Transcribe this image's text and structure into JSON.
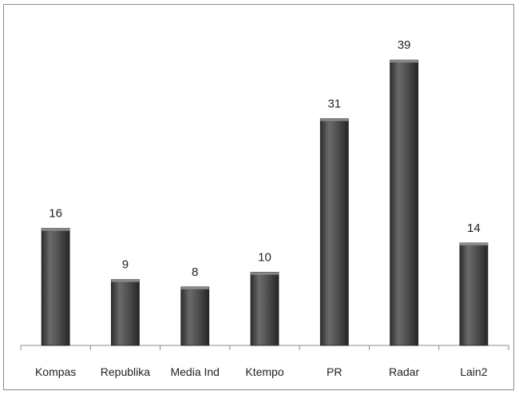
{
  "chart_data": {
    "type": "bar",
    "title": "",
    "xlabel": "",
    "ylabel": "",
    "categories": [
      "Kompas",
      "Republika",
      "Media Ind",
      "Ktempo",
      "PR",
      "Radar",
      "Lain2"
    ],
    "values": [
      16,
      9,
      8,
      10,
      31,
      39,
      14
    ],
    "ylim": [
      0,
      40
    ],
    "grid": false,
    "legend": "none",
    "data_labels": true,
    "bar_color": "#4a4a4a"
  }
}
